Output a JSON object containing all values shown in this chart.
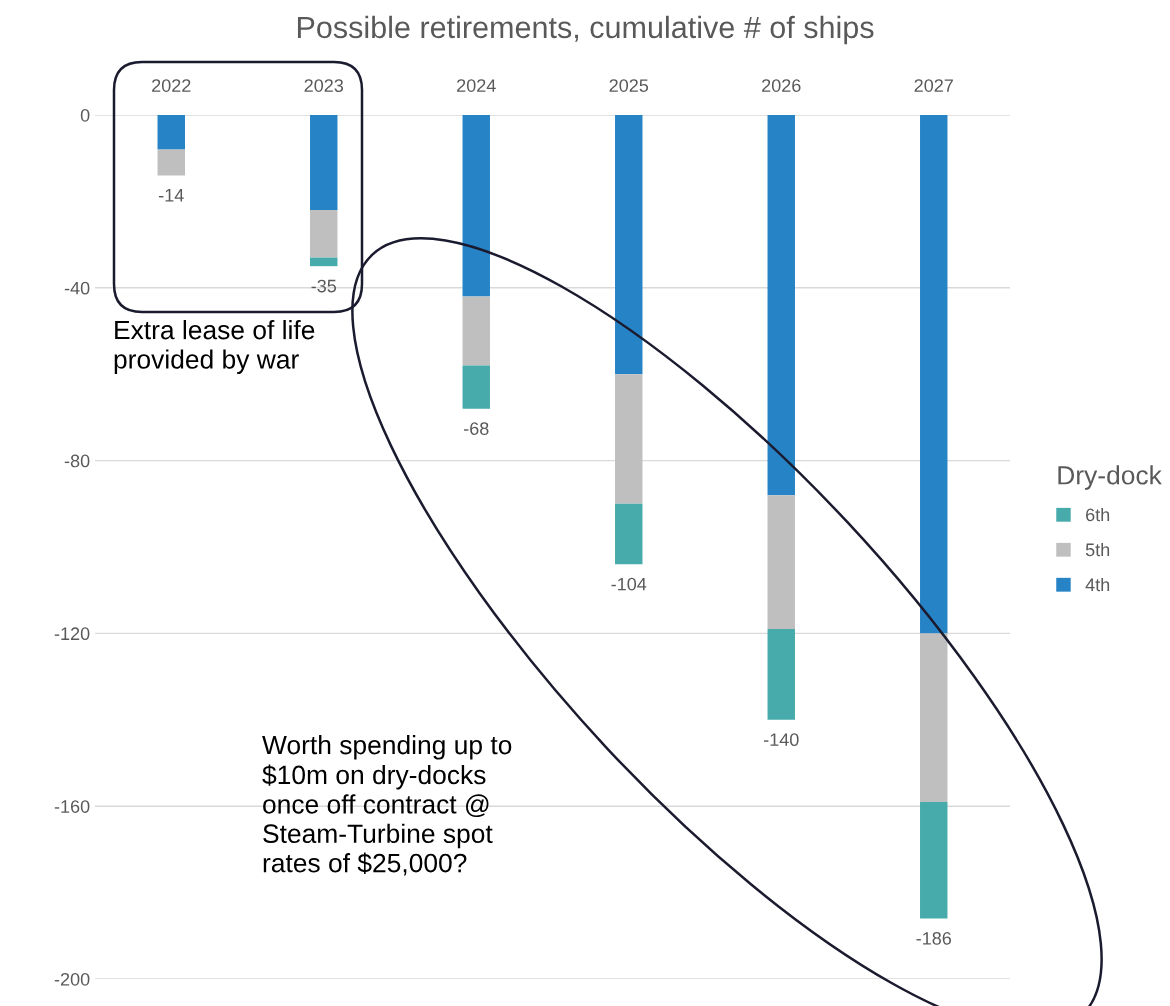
{
  "chart_data": {
    "type": "bar",
    "title": "Possible retirements, cumulative # of ships",
    "categories": [
      "2022",
      "2023",
      "2024",
      "2025",
      "2026",
      "2027"
    ],
    "stacked": true,
    "series": [
      {
        "name": "4th",
        "color": "#2683c6",
        "values": [
          -8,
          -22,
          -42,
          -60,
          -88,
          -120
        ]
      },
      {
        "name": "5th",
        "color": "#bfbfbf",
        "values": [
          -6,
          -11,
          -16,
          -30,
          -31,
          -39
        ]
      },
      {
        "name": "6th",
        "color": "#47abab",
        "values": [
          0,
          -2,
          -10,
          -14,
          -21,
          -27
        ]
      }
    ],
    "totals": [
      "-14",
      "-35",
      "-68",
      "-104",
      "-140",
      "-186"
    ],
    "ylim": [
      -200,
      0
    ],
    "yticks": [
      -200,
      -160,
      -120,
      -80,
      -40,
      0
    ],
    "grid": "y",
    "legend": "right",
    "legend_title": "Dry-dock",
    "annotations": [
      "Extra lease of life provided by war",
      "Worth spending up to $10m on dry-docks once off contract @ Steam-Turbine spot rates of $25,000?"
    ]
  }
}
